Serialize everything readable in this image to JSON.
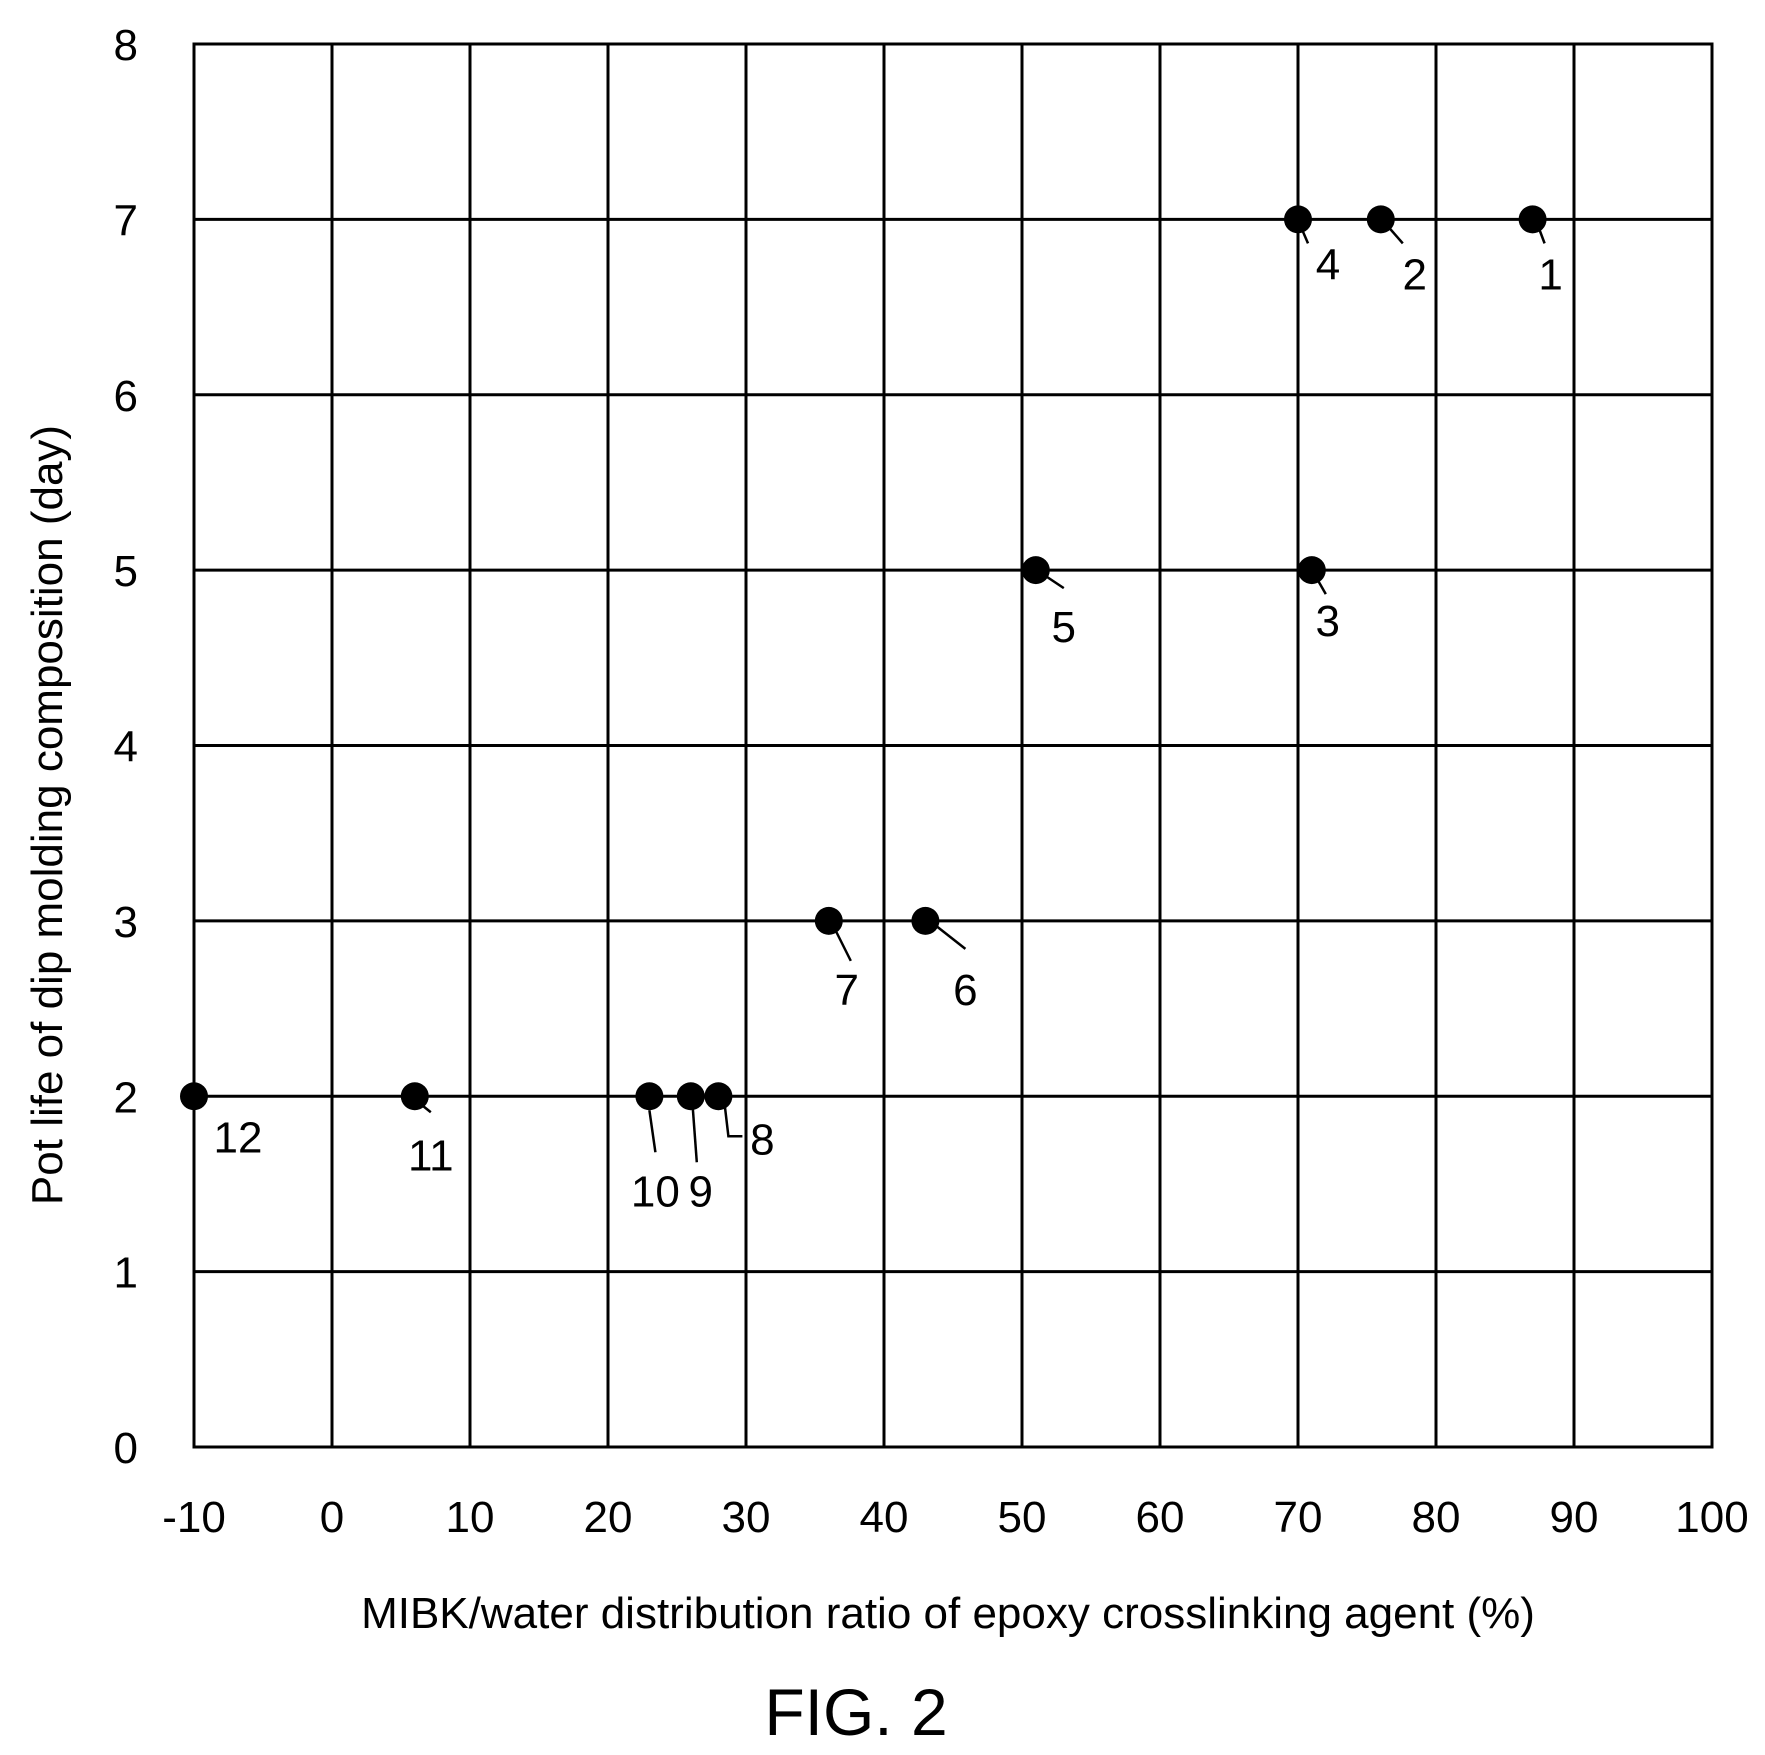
{
  "chart_data": {
    "type": "scatter",
    "xlabel": "MIBK/water distribution ratio of epoxy crosslinking agent (%)",
    "ylabel": "Pot life of dip molding composition (day)",
    "xlim": [
      -10,
      100
    ],
    "ylim": [
      0,
      8
    ],
    "x_ticks": [
      -10,
      0,
      10,
      20,
      30,
      40,
      50,
      60,
      70,
      80,
      90,
      100
    ],
    "y_ticks": [
      0,
      1,
      2,
      3,
      4,
      5,
      6,
      7,
      8
    ],
    "x_tick_labels": [
      "-10",
      "0",
      "10",
      "20",
      "30",
      "40",
      "50",
      "60",
      "70",
      "80",
      "90",
      "100"
    ],
    "y_tick_labels": [
      "0",
      "1",
      "2",
      "3",
      "4",
      "5",
      "6",
      "7",
      "8"
    ],
    "grid": true,
    "points": [
      {
        "label": "1",
        "x": 87,
        "y": 7
      },
      {
        "label": "2",
        "x": 76,
        "y": 7
      },
      {
        "label": "3",
        "x": 71,
        "y": 5
      },
      {
        "label": "4",
        "x": 70,
        "y": 7
      },
      {
        "label": "5",
        "x": 51,
        "y": 5
      },
      {
        "label": "6",
        "x": 43,
        "y": 3
      },
      {
        "label": "7",
        "x": 36,
        "y": 3
      },
      {
        "label": "8",
        "x": 28,
        "y": 2
      },
      {
        "label": "9",
        "x": 26,
        "y": 2
      },
      {
        "label": "10",
        "x": 23,
        "y": 2
      },
      {
        "label": "11",
        "x": 6,
        "y": 2
      },
      {
        "label": "12",
        "x": -10,
        "y": 2
      }
    ],
    "marker_color": "#000000"
  },
  "caption": "FIG. 2"
}
